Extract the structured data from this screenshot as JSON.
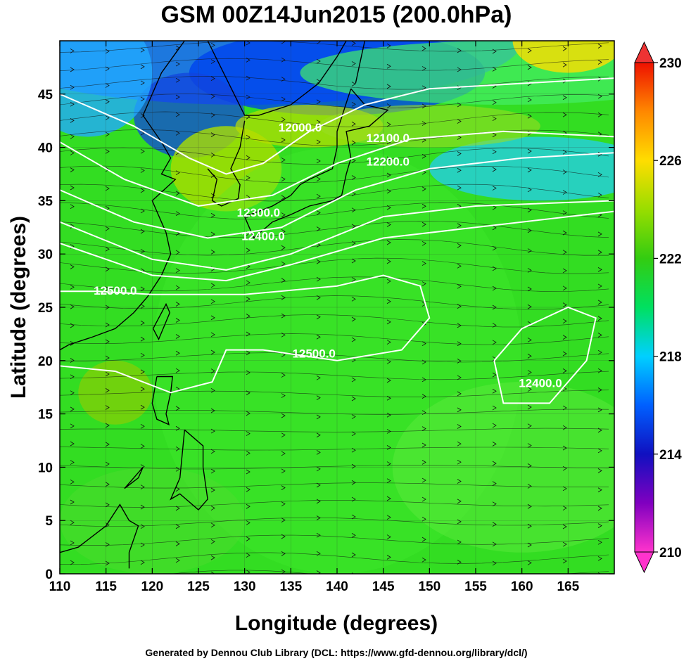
{
  "chart_data": {
    "type": "heatmap",
    "title": "GSM 00Z14Jun2015 (200.0hPa)",
    "xlabel": "Longitude (degrees)",
    "ylabel": "Latitude  (degrees)",
    "xlim": [
      110,
      170
    ],
    "ylim": [
      0,
      50
    ],
    "x_ticks": [
      "110",
      "115",
      "120",
      "125",
      "130",
      "135",
      "140",
      "145",
      "150",
      "155",
      "160",
      "165"
    ],
    "y_ticks": [
      "0",
      "5",
      "10",
      "15",
      "20",
      "25",
      "30",
      "35",
      "40",
      "45"
    ],
    "colorbar": {
      "min": 210,
      "max": 230,
      "ticks": [
        "210",
        "214",
        "218",
        "222",
        "226",
        "230"
      ],
      "colors": [
        "#ff33cc",
        "#8000c0",
        "#1010c0",
        "#0060ff",
        "#00d0ff",
        "#00e060",
        "#33cc11",
        "#99dd00",
        "#ffdd00",
        "#ff8800",
        "#ee1100"
      ]
    },
    "contour_labels": [
      {
        "text": "12000.0",
        "lon": 136.0,
        "lat": 41.5
      },
      {
        "text": "12100.0",
        "lon": 145.5,
        "lat": 40.5
      },
      {
        "text": "12200.0",
        "lon": 145.5,
        "lat": 38.3
      },
      {
        "text": "12300.0",
        "lon": 131.5,
        "lat": 33.5
      },
      {
        "text": "12400.0",
        "lon": 132.0,
        "lat": 31.3
      },
      {
        "text": "12500.0",
        "lon": 116.0,
        "lat": 26.2
      },
      {
        "text": "12500.0",
        "lon": 137.5,
        "lat": 20.3
      },
      {
        "text": "12400.0",
        "lon": 162.0,
        "lat": 17.5
      }
    ],
    "legend": "right colorbar",
    "grid": true
  },
  "footer": "Generated by Dennou Club Library (DCL: https://www.gfd-dennou.org/library/dcl/)"
}
